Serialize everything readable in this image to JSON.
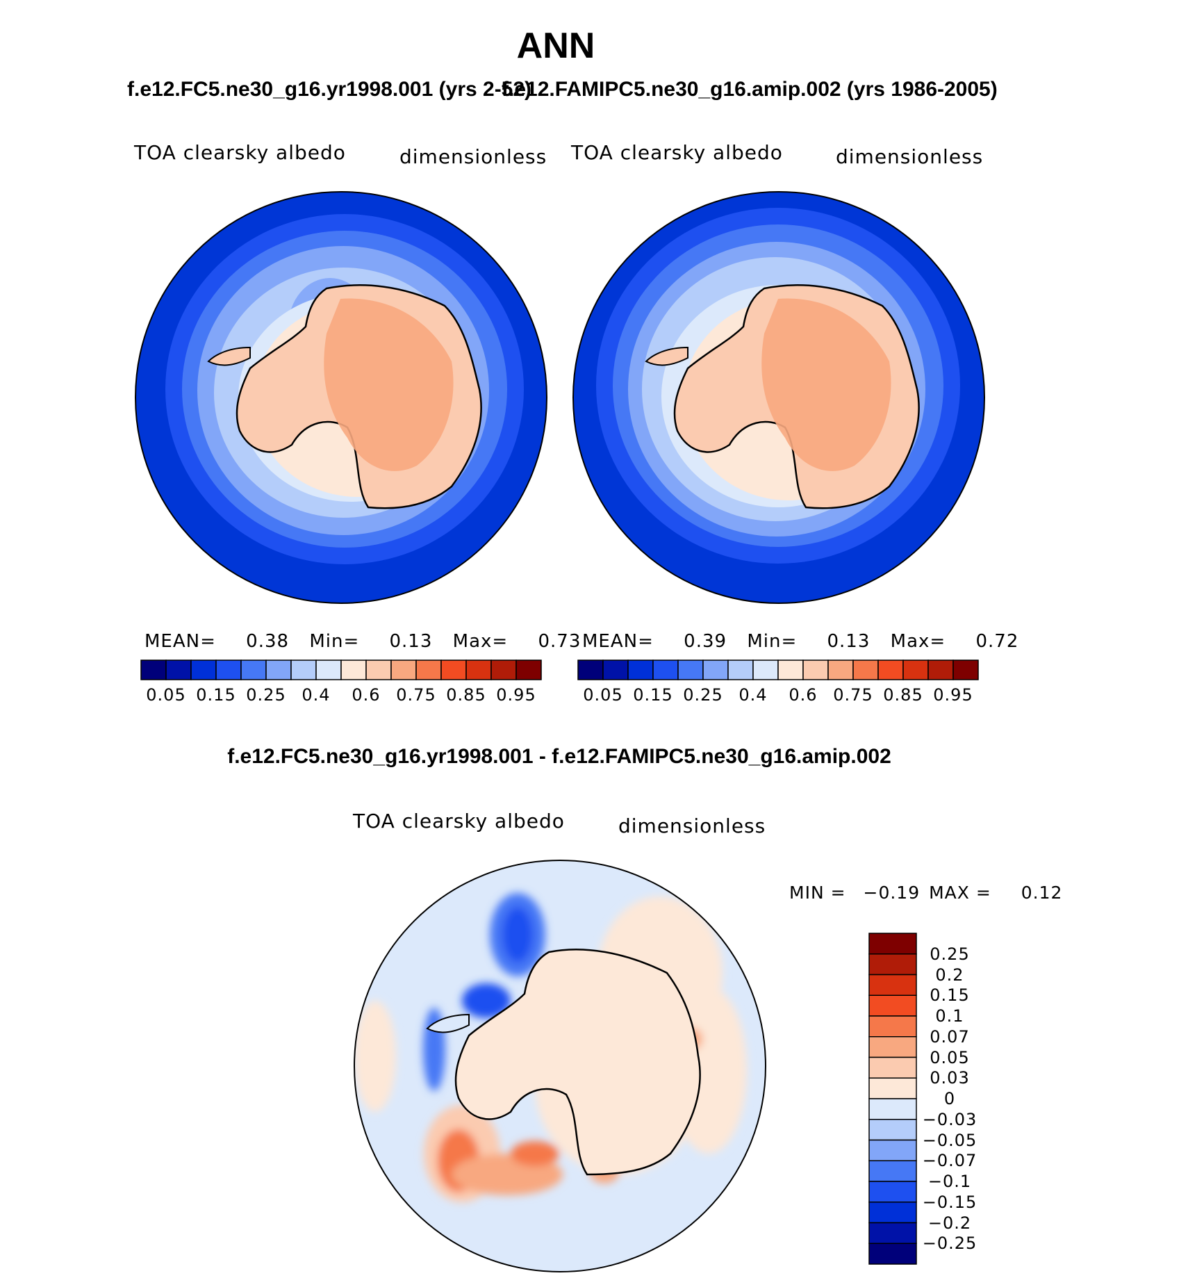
{
  "main_title": "ANN",
  "top_panels": [
    {
      "case_title": "f.e12.FC5.ne30_g16.yr1998.001 (yrs 2-52)",
      "variable": "TOA clearsky albedo",
      "units": "dimensionless",
      "stats": {
        "mean_label": "MEAN=",
        "mean": "0.38",
        "min_label": "Min=",
        "min": "0.13",
        "max_label": "Max=",
        "max": "0.73"
      }
    },
    {
      "case_title": "f.e12.FAMIPC5.ne30_g16.amip.002 (yrs 1986-2005)",
      "variable": "TOA clearsky albedo",
      "units": "dimensionless",
      "stats": {
        "mean_label": "MEAN=",
        "mean": "0.39",
        "min_label": "Min=",
        "min": "0.13",
        "max_label": "Max=",
        "max": "0.72"
      }
    }
  ],
  "top_colorbar": {
    "colors": [
      "#00007a",
      "#0012a8",
      "#0030d8",
      "#1e50f0",
      "#4678f5",
      "#82a6f8",
      "#b4cdfa",
      "#dce9fb",
      "#fde8d8",
      "#fbcbb0",
      "#f8a880",
      "#f5784a",
      "#f24c22",
      "#d83210",
      "#b01c08",
      "#7e0000"
    ],
    "labels": [
      "0.05",
      "0.15",
      "0.25",
      "0.4",
      "0.6",
      "0.75",
      "0.85",
      "0.95"
    ]
  },
  "diff_panel": {
    "title": "f.e12.FC5.ne30_g16.yr1998.001 - f.e12.FAMIPC5.ne30_g16.amip.002",
    "variable": "TOA clearsky albedo",
    "units": "dimensionless",
    "minmax": {
      "min_label": "MIN =",
      "min": "−0.19",
      "max_label": "MAX =",
      "max": "0.12"
    }
  },
  "diff_colorbar": {
    "colors": [
      "#7e0000",
      "#b01c08",
      "#d83210",
      "#f24c22",
      "#f5784a",
      "#f8a880",
      "#fbcbb0",
      "#fde8d8",
      "#dce9fb",
      "#b4cdfa",
      "#82a6f8",
      "#4678f5",
      "#1e50f0",
      "#0030d8",
      "#0012a8",
      "#00007a"
    ],
    "labels": [
      "0.25",
      "0.2",
      "0.15",
      "0.1",
      "0.07",
      "0.05",
      "0.03",
      "0",
      "−0.03",
      "−0.05",
      "−0.07",
      "−0.1",
      "−0.15",
      "−0.2",
      "−0.25"
    ]
  }
}
